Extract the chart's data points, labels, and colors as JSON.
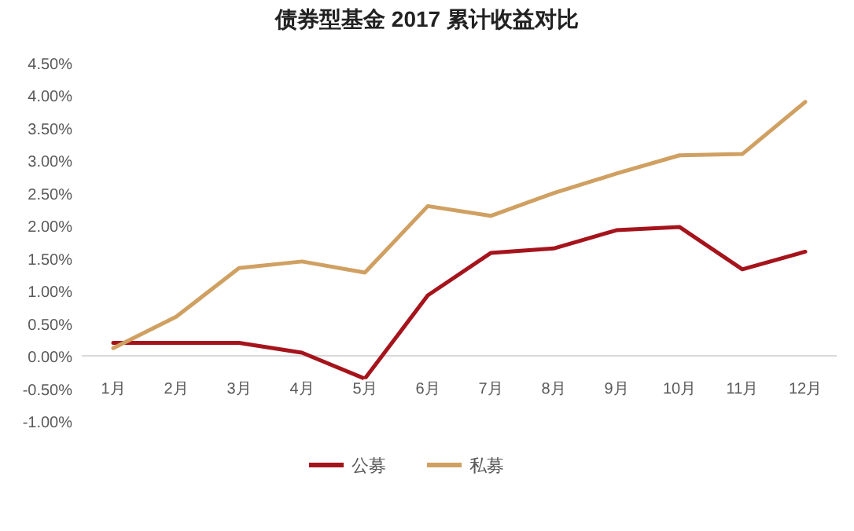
{
  "chart_data": {
    "type": "line",
    "title": "债券型基金 2017 累计收益对比",
    "categories": [
      "1月",
      "2月",
      "3月",
      "4月",
      "5月",
      "6月",
      "7月",
      "8月",
      "9月",
      "10月",
      "11月",
      "12月"
    ],
    "series": [
      {
        "name": "公募",
        "color": "#a5141c",
        "values": [
          0.2,
          0.2,
          0.2,
          0.05,
          -0.35,
          0.93,
          1.58,
          1.65,
          1.93,
          1.98,
          1.33,
          1.6
        ]
      },
      {
        "name": "私募",
        "color": "#d0a062",
        "values": [
          0.12,
          0.6,
          1.35,
          1.45,
          1.28,
          2.3,
          2.15,
          2.5,
          2.8,
          3.08,
          3.1,
          3.9
        ]
      }
    ],
    "ylim": [
      -1,
      4.5
    ],
    "yticks": [
      {
        "value": -1,
        "label": "-1.00%"
      },
      {
        "value": -0.5,
        "label": "-0.50%"
      },
      {
        "value": 0,
        "label": "0.00%"
      },
      {
        "value": 0.5,
        "label": "0.50%"
      },
      {
        "value": 1,
        "label": "1.00%"
      },
      {
        "value": 1.5,
        "label": "1.50%"
      },
      {
        "value": 2,
        "label": "2.00%"
      },
      {
        "value": 2.5,
        "label": "2.50%"
      },
      {
        "value": 3,
        "label": "3.00%"
      },
      {
        "value": 3.5,
        "label": "3.50%"
      },
      {
        "value": 4,
        "label": "4.00%"
      },
      {
        "value": 4.5,
        "label": "4.50%"
      }
    ],
    "grid": false,
    "legend": "bottom",
    "marker": "none",
    "line_style": "solid"
  }
}
